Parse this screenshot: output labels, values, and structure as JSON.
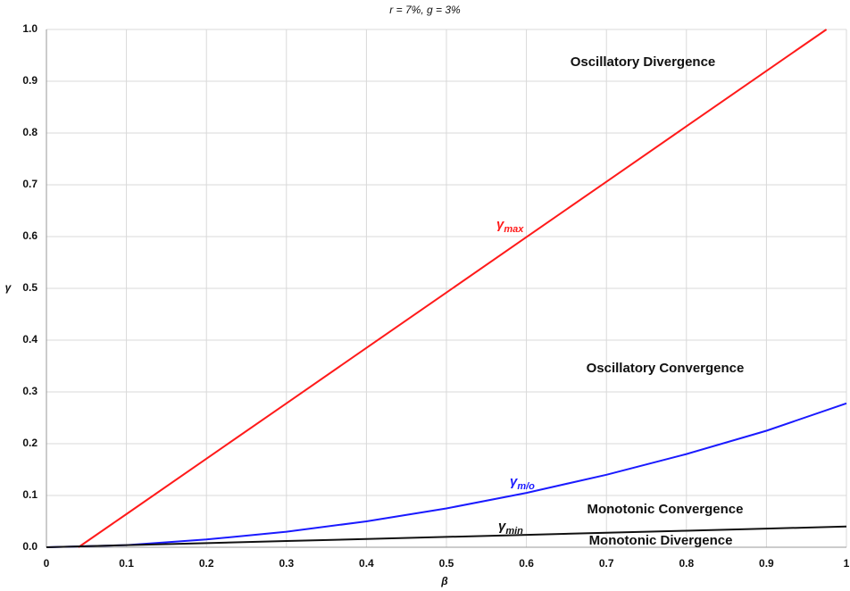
{
  "chart_data": {
    "type": "line",
    "title": "r = 7%, g = 3%",
    "xlabel": "β",
    "ylabel": "γ",
    "xlim": [
      0,
      1
    ],
    "ylim": [
      0,
      1
    ],
    "xticks": [
      0,
      0.1,
      0.2,
      0.3,
      0.4,
      0.5,
      0.6,
      0.7,
      0.8,
      0.9,
      1
    ],
    "yticks": [
      {
        "value": 0,
        "label": "0.0"
      },
      0.1,
      0.2,
      0.3,
      0.4,
      0.5,
      0.6,
      0.7,
      0.8,
      0.9,
      {
        "value": 1,
        "label": "1.0"
      }
    ],
    "grid": true,
    "series": [
      {
        "label": {
          "symbol": "γ",
          "sub": "max"
        },
        "color": "#ff1a1a",
        "x": [
          0.04,
          0.1,
          0.2,
          0.3,
          0.4,
          0.5,
          0.6,
          0.7,
          0.8,
          0.9,
          0.975
        ],
        "values": [
          0,
          0.064,
          0.171,
          0.278,
          0.385,
          0.492,
          0.599,
          0.706,
          0.813,
          0.92,
          1.0
        ]
      },
      {
        "label": {
          "symbol": "γ",
          "sub": "m/o"
        },
        "color": "#1a1aff",
        "x": [
          0,
          0.1,
          0.2,
          0.3,
          0.4,
          0.5,
          0.6,
          0.7,
          0.8,
          0.9,
          1
        ],
        "values": [
          0,
          0.004,
          0.015,
          0.03,
          0.05,
          0.075,
          0.105,
          0.14,
          0.18,
          0.225,
          0.278
        ]
      },
      {
        "label": {
          "symbol": "γ",
          "sub": "min"
        },
        "color": "#111111",
        "x": [
          0,
          0.1,
          0.2,
          0.3,
          0.4,
          0.5,
          0.6,
          0.7,
          0.8,
          0.9,
          1
        ],
        "values": [
          0,
          0.004,
          0.008,
          0.012,
          0.016,
          0.02,
          0.024,
          0.028,
          0.032,
          0.036,
          0.04
        ]
      }
    ],
    "annotations": [
      "Oscillatory Divergence",
      "Oscillatory Convergence",
      "Monotonic Convergence",
      "Monotonic Divergence"
    ]
  }
}
